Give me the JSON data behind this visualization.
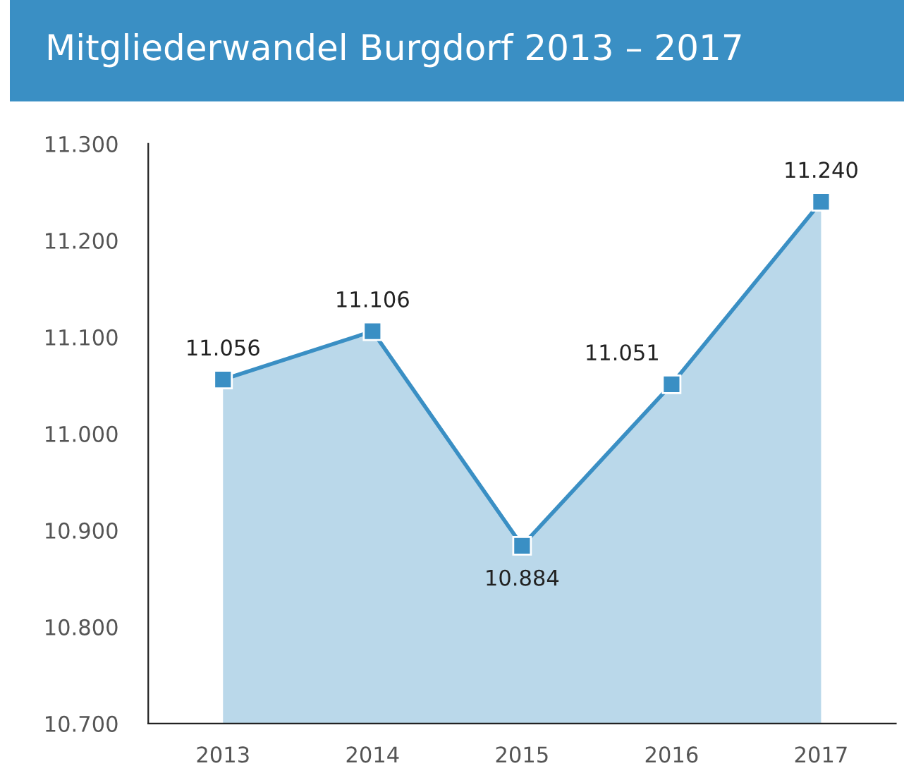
{
  "chart_data": {
    "type": "area",
    "title": "Mitgliederwandel Burgdorf 2013 – 2017",
    "categories": [
      "2013",
      "2014",
      "2015",
      "2016",
      "2017"
    ],
    "series": [
      {
        "color": "#3a8fc4",
        "values": [
          11056,
          11106,
          10884,
          11051,
          11240
        ]
      }
    ],
    "value_labels": [
      "11.056",
      "11.106",
      "10.884",
      "11.051",
      "11.240"
    ],
    "ylim": [
      10700,
      11300
    ],
    "yticks": [
      {
        "value": 10700,
        "label": "10.700"
      },
      {
        "value": 10800,
        "label": "10.800"
      },
      {
        "value": 10900,
        "label": "10.900"
      },
      {
        "value": 11000,
        "label": "11.000"
      },
      {
        "value": 11100,
        "label": "11.100"
      },
      {
        "value": 11200,
        "label": "11.200"
      },
      {
        "value": 11300,
        "label": "11.300"
      }
    ],
    "marker": "square",
    "grid": false,
    "legend": false
  }
}
